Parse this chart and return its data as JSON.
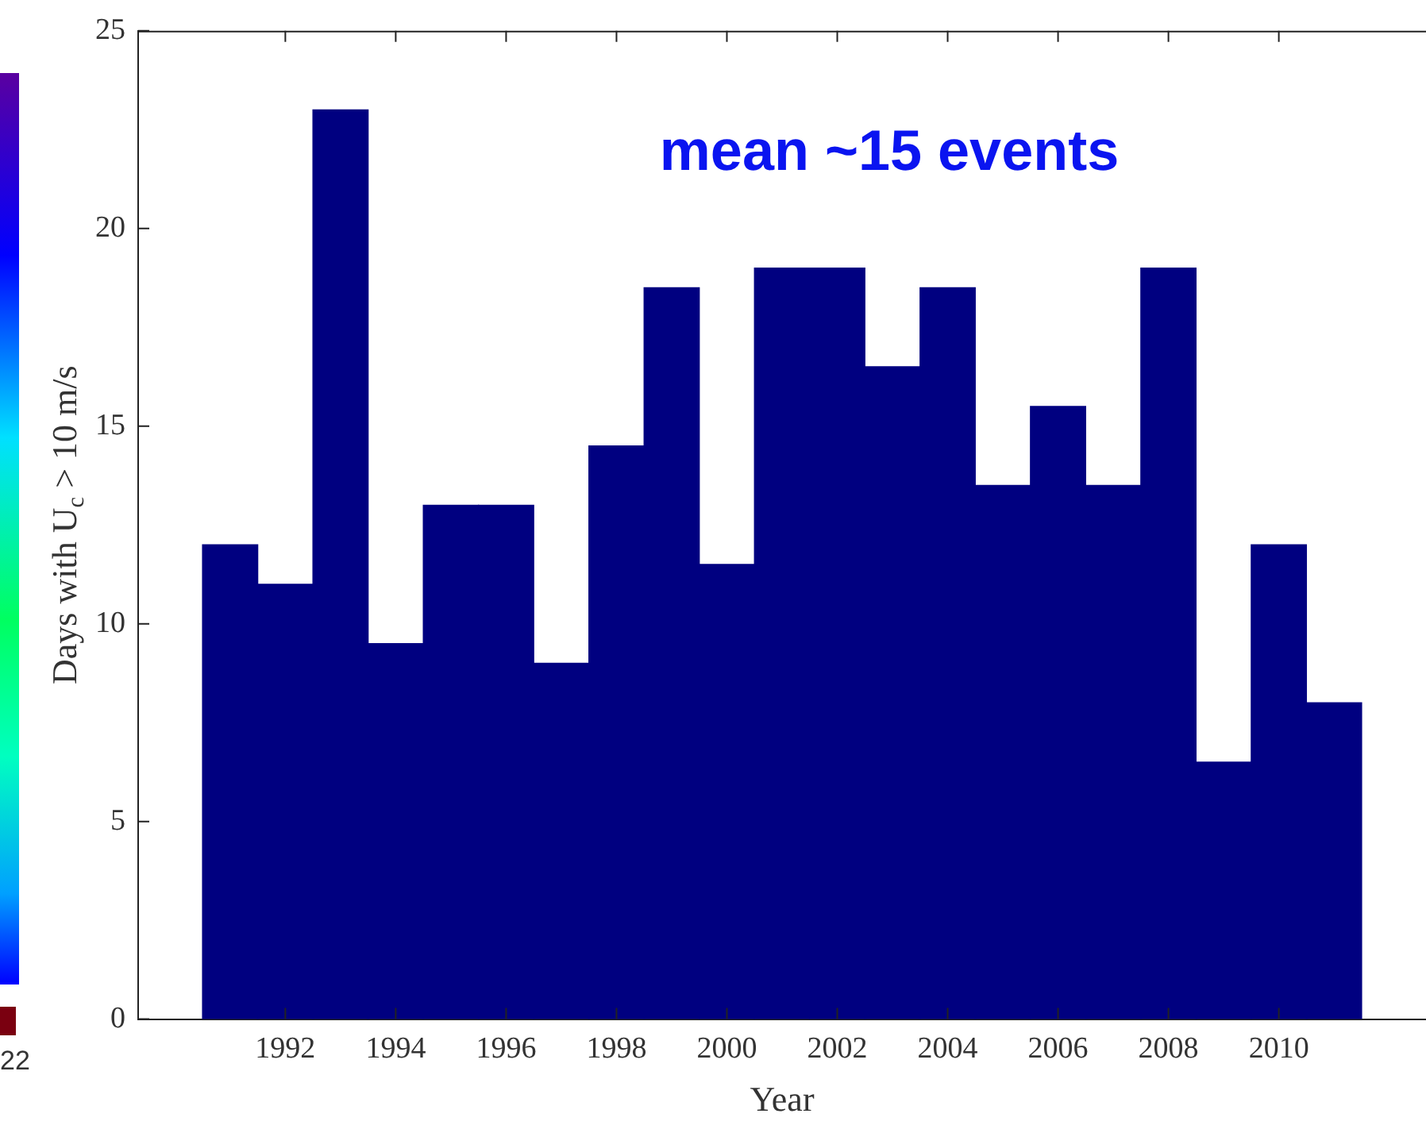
{
  "chart_data": {
    "type": "bar",
    "xlabel": "Year",
    "ylabel": "Days with U$_{c}$ > 10 m/s",
    "annotations": [
      "mean ~15 events",
      "22"
    ],
    "x": [
      1991,
      1992,
      1993,
      1994,
      1995,
      1996,
      1997,
      1998,
      1999,
      2000,
      2001,
      2002,
      2003,
      2004,
      2005,
      2006,
      2007,
      2008,
      2009,
      2010,
      2011
    ],
    "series": [
      {
        "color": "#000080",
        "values": [
          12,
          11,
          23,
          9.5,
          13,
          13,
          9,
          14.5,
          18.5,
          11.5,
          19,
          19,
          16.5,
          18.5,
          13.5,
          15.5,
          13.5,
          19,
          6.5,
          12,
          8
        ]
      }
    ],
    "xlim": [
      1990.5,
      2011.5
    ],
    "xticks": [
      1992,
      1994,
      1996,
      1998,
      2000,
      2002,
      2004,
      2006,
      2008,
      2010
    ],
    "ylim": [
      0,
      25
    ],
    "yticks": [
      0,
      5,
      10,
      15,
      20,
      25
    ],
    "grid": false,
    "legend": false
  }
}
